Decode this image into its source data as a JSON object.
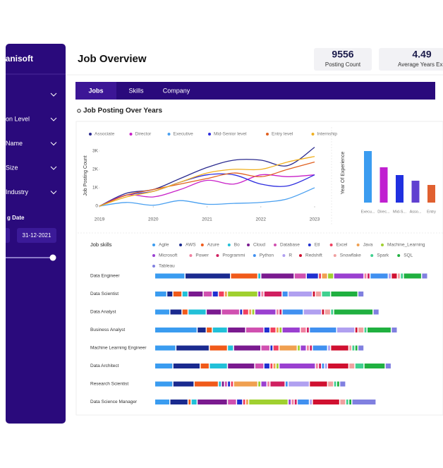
{
  "sidebar": {
    "brand": "vanisoft",
    "filters": [
      "on Level",
      "Name",
      "Size",
      "Industry"
    ],
    "date_label": "g Date",
    "date_end": "31-12-2021"
  },
  "header": {
    "title": "Job Overview",
    "kpis": [
      {
        "value": 9556,
        "label": "Posting Count"
      },
      {
        "value": 4.49,
        "label": "Average Years Exp"
      }
    ]
  },
  "tabs": [
    "Jobs",
    "Skills",
    "Company"
  ],
  "section_title": "Job Posting Over Years",
  "chart_data": [
    {
      "type": "line",
      "y_label": "Job Posting Count",
      "x": [
        2019,
        2019.5,
        2020,
        2020.5,
        2021,
        2021.5,
        2022,
        2022.5,
        2023
      ],
      "xlim": [
        2019,
        2023
      ],
      "xticks": [
        2019,
        2020,
        2021,
        2022,
        2023
      ],
      "ylim": [
        0,
        3300
      ],
      "yticks": [
        0,
        {
          "value": 1000,
          "label": "1K"
        },
        {
          "value": 2000,
          "label": "2K"
        },
        {
          "value": 3000,
          "label": "3K"
        }
      ],
      "series": [
        {
          "name": "Associate",
          "color": "#2b2b8f",
          "values": [
            0,
            700,
            900,
            1500,
            2100,
            2500,
            2500,
            2200,
            3200
          ]
        },
        {
          "name": "Director",
          "color": "#c81fc8",
          "values": [
            0,
            600,
            500,
            900,
            1400,
            1200,
            1700,
            1600,
            1700
          ]
        },
        {
          "name": "Executive",
          "color": "#4aa0f0",
          "values": [
            0,
            200,
            50,
            300,
            100,
            150,
            200,
            400,
            1000
          ]
        },
        {
          "name": "Mid-Senior level",
          "color": "#2d2ddf",
          "values": [
            0,
            600,
            800,
            1300,
            1700,
            1700,
            1200,
            1100,
            1700
          ]
        },
        {
          "name": "Entry level",
          "color": "#e06020",
          "values": [
            0,
            600,
            900,
            1200,
            1500,
            1800,
            1600,
            2000,
            2400
          ]
        },
        {
          "name": "Internship",
          "color": "#f0b020",
          "values": [
            0,
            500,
            800,
            1300,
            1800,
            2000,
            2000,
            2400,
            2700
          ]
        }
      ]
    },
    {
      "type": "bar",
      "y_label": "Year Of Experience",
      "categories": [
        "Execu...",
        "Direc...",
        "Mid-S...",
        "Asso...",
        "Entry"
      ],
      "values": [
        7.3,
        5.0,
        3.9,
        3.1,
        2.5
      ],
      "colors": [
        "#3b9cf0",
        "#c020d0",
        "#2030e0",
        "#6040d0",
        "#e06030"
      ],
      "ylim": [
        0,
        8
      ]
    },
    {
      "type": "stacked_bar",
      "orientation": "horizontal",
      "title": "Job skills",
      "categories": [
        "Data Engineer",
        "Data Scientist",
        "Data Analyst",
        "Business Analyst",
        "Machine Learning Engineer",
        "Data Architect",
        "Research Scientist",
        "Data Science Manager"
      ],
      "series": [
        {
          "name": "Agile",
          "color": "#3a9cf0",
          "values": [
            10,
            4,
            5,
            14,
            7,
            6,
            6,
            5
          ]
        },
        {
          "name": "AWS",
          "color": "#1a2a8f",
          "values": [
            15,
            2,
            4,
            3,
            11,
            9,
            7,
            6
          ]
        },
        {
          "name": "Azure",
          "color": "#f05a1a",
          "values": [
            9,
            3,
            2,
            2,
            6,
            3,
            8,
            1
          ]
        },
        {
          "name": "Bo",
          "color": "#22c0d8",
          "values": [
            1,
            2,
            6,
            5,
            2,
            6,
            1,
            2
          ]
        },
        {
          "name": "Cloud",
          "color": "#7a1a8f",
          "values": [
            11,
            5,
            5,
            6,
            9,
            9,
            1,
            10
          ]
        },
        {
          "name": "Database",
          "color": "#d050b0",
          "values": [
            4,
            3,
            6,
            6,
            3,
            3,
            1,
            3
          ]
        },
        {
          "name": "Etl",
          "color": "#2030d0",
          "values": [
            4,
            2,
            1,
            2,
            1,
            2,
            1,
            2
          ]
        },
        {
          "name": "Excel",
          "color": "#f04060",
          "values": [
            1,
            2,
            2,
            2,
            2,
            1,
            1,
            1
          ]
        },
        {
          "name": "Java",
          "color": "#f0a050",
          "values": [
            2,
            1,
            1,
            1,
            6,
            1,
            8,
            1
          ]
        },
        {
          "name": "Machine_Learning",
          "color": "#a0d030",
          "values": [
            2,
            10,
            1,
            1,
            1,
            1,
            1,
            13
          ]
        },
        {
          "name": "Microsoft",
          "color": "#9a40d0",
          "values": [
            10,
            1,
            7,
            6,
            2,
            12,
            2,
            1
          ]
        },
        {
          "name": "Power",
          "color": "#f080a0",
          "values": [
            1,
            1,
            1,
            2,
            1,
            1,
            1,
            1
          ]
        },
        {
          "name": "Programmi",
          "color": "#d02060",
          "values": [
            1,
            6,
            1,
            1,
            1,
            1,
            5,
            1
          ]
        },
        {
          "name": "Python",
          "color": "#4090f0",
          "values": [
            6,
            2,
            7,
            9,
            5,
            1,
            1,
            4
          ]
        },
        {
          "name": "R",
          "color": "#b0a0f0",
          "values": [
            1,
            8,
            6,
            6,
            1,
            1,
            7,
            1
          ]
        },
        {
          "name": "Redshift",
          "color": "#d01030",
          "values": [
            2,
            1,
            1,
            1,
            6,
            7,
            6,
            9
          ]
        },
        {
          "name": "Snowflake",
          "color": "#f0a0a0",
          "values": [
            1,
            2,
            2,
            2,
            1,
            2,
            2,
            2
          ]
        },
        {
          "name": "Spark",
          "color": "#40d090",
          "values": [
            1,
            3,
            1,
            1,
            1,
            3,
            1,
            1
          ]
        },
        {
          "name": "SQL",
          "color": "#20b040",
          "values": [
            6,
            9,
            13,
            8,
            1,
            7,
            1,
            1
          ]
        },
        {
          "name": "Tableau",
          "color": "#8080e0",
          "values": [
            2,
            2,
            2,
            2,
            2,
            2,
            2,
            8
          ]
        }
      ]
    }
  ]
}
